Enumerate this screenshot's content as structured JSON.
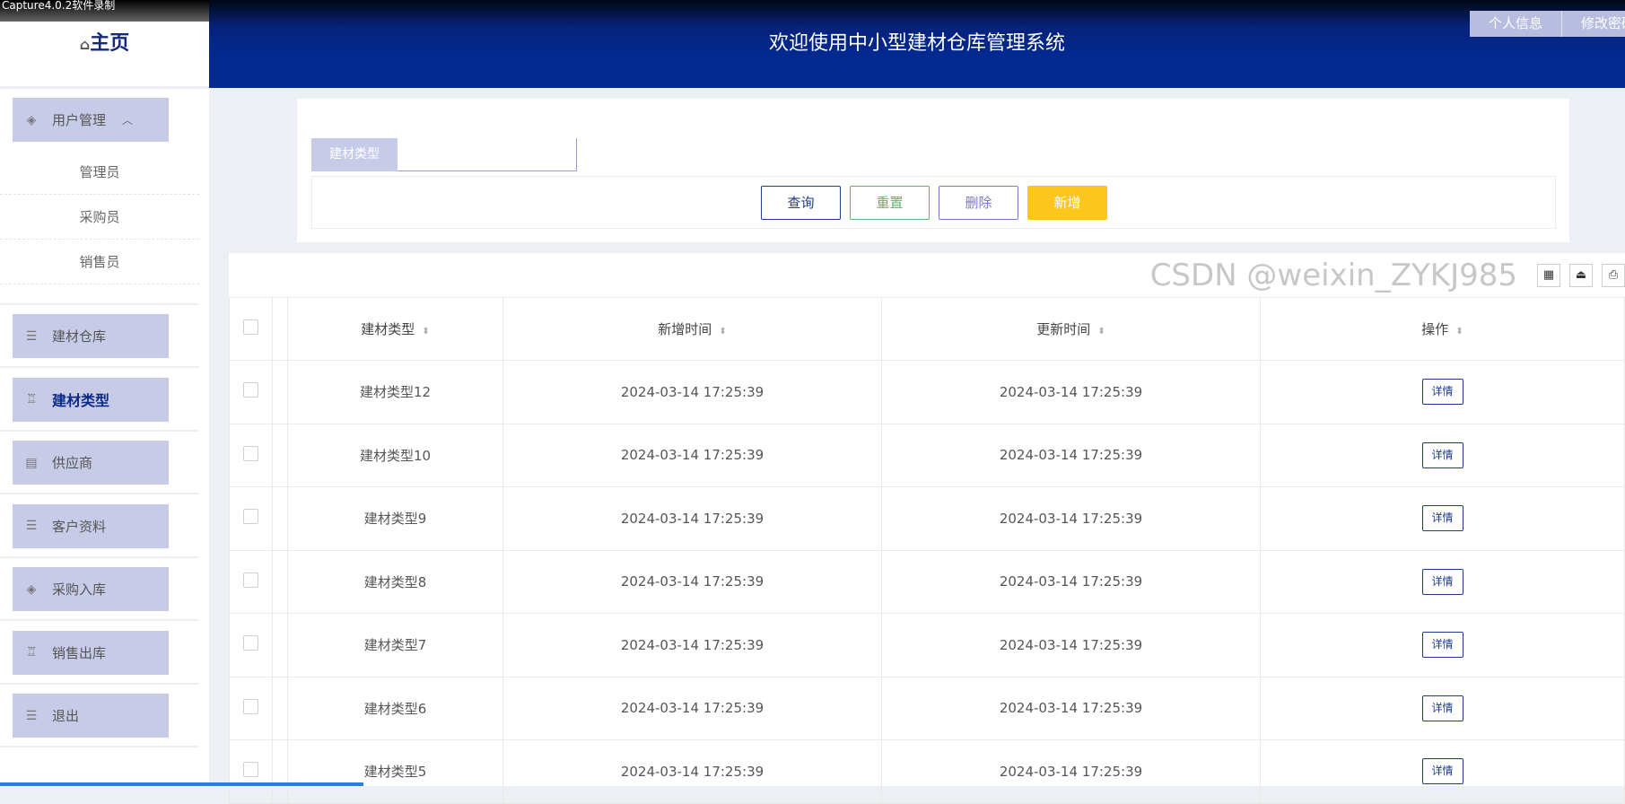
{
  "capture_overlay": "Capture4.0.2软件录制",
  "sidebar": {
    "home": "主页",
    "home_icon": "home-icon",
    "user_mgmt": {
      "label": "用户管理",
      "icon": "layers-icon",
      "sub": [
        "管理员",
        "采购员",
        "销售员"
      ]
    },
    "items": [
      {
        "label": "建材仓库",
        "icon": "list-icon"
      },
      {
        "label": "建材类型",
        "icon": "alarm-icon",
        "active": true
      },
      {
        "label": "供应商",
        "icon": "clipboard-icon"
      },
      {
        "label": "客户资料",
        "icon": "list-icon"
      },
      {
        "label": "采购入库",
        "icon": "layers-icon"
      },
      {
        "label": "销售出库",
        "icon": "alarm-icon"
      },
      {
        "label": "退出",
        "icon": "list-icon"
      }
    ]
  },
  "header": {
    "title": "欢迎使用中小型建材仓库管理系统",
    "buttons": [
      "个人信息",
      "修改密码"
    ]
  },
  "search": {
    "label": "建材类型",
    "value": "",
    "buttons": {
      "query": "查询",
      "reset": "重置",
      "delete": "删除",
      "add": "新增"
    }
  },
  "colors": {
    "header": "#032b93",
    "accent": "#c8cbe8",
    "add": "#fdc61c",
    "reset": "#5fb36a",
    "delete": "#7a7ac8",
    "query": "#1e3a8a"
  },
  "table": {
    "toolbar_icons": [
      "columns-icon",
      "export-icon",
      "print-icon"
    ],
    "columns": [
      "建材类型",
      "新增时间",
      "更新时间",
      "操作"
    ],
    "rows": [
      {
        "type": "建材类型12",
        "created": "2024-03-14 17:25:39",
        "updated": "2024-03-14 17:25:39",
        "action": "详情"
      },
      {
        "type": "建材类型10",
        "created": "2024-03-14 17:25:39",
        "updated": "2024-03-14 17:25:39",
        "action": "详情"
      },
      {
        "type": "建材类型9",
        "created": "2024-03-14 17:25:39",
        "updated": "2024-03-14 17:25:39",
        "action": "详情"
      },
      {
        "type": "建材类型8",
        "created": "2024-03-14 17:25:39",
        "updated": "2024-03-14 17:25:39",
        "action": "详情"
      },
      {
        "type": "建材类型7",
        "created": "2024-03-14 17:25:39",
        "updated": "2024-03-14 17:25:39",
        "action": "详情"
      },
      {
        "type": "建材类型6",
        "created": "2024-03-14 17:25:39",
        "updated": "2024-03-14 17:25:39",
        "action": "详情"
      },
      {
        "type": "建材类型5",
        "created": "2024-03-14 17:25:39",
        "updated": "2024-03-14 17:25:39",
        "action": "详情"
      }
    ]
  },
  "watermark": "CSDN @weixin_ZYKJ985"
}
